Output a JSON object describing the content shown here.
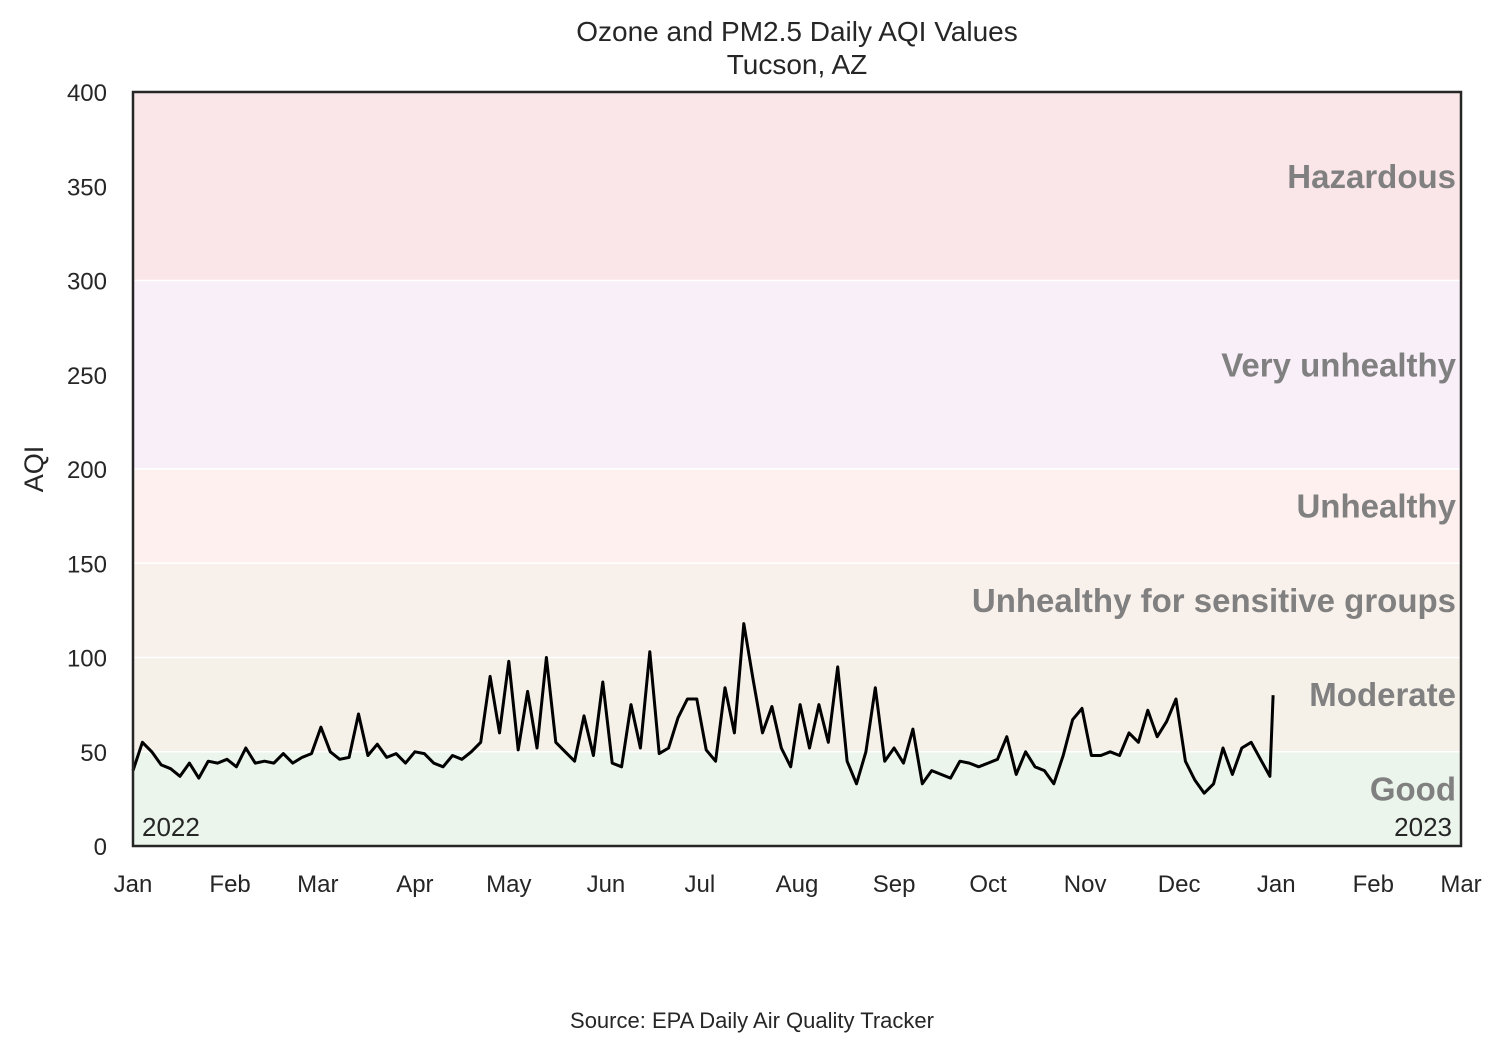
{
  "chart_data": {
    "type": "line",
    "title": "Ozone and PM2.5 Daily AQI Values",
    "subtitle": "Tucson, AZ",
    "xlabel": "",
    "ylabel": "AQI",
    "ylim": [
      0,
      400
    ],
    "yticks": [
      "0",
      "50",
      "100",
      "150",
      "200",
      "250",
      "300",
      "350",
      "400"
    ],
    "xlim_days_from_2022_01_01": [
      0,
      424
    ],
    "xticks": [
      {
        "label": "Jan",
        "day": 0
      },
      {
        "label": "Feb",
        "day": 31
      },
      {
        "label": "Mar",
        "day": 59
      },
      {
        "label": "Apr",
        "day": 90
      },
      {
        "label": "May",
        "day": 120
      },
      {
        "label": "Jun",
        "day": 151
      },
      {
        "label": "Jul",
        "day": 181
      },
      {
        "label": "Aug",
        "day": 212
      },
      {
        "label": "Sep",
        "day": 243
      },
      {
        "label": "Oct",
        "day": 273
      },
      {
        "label": "Nov",
        "day": 304
      },
      {
        "label": "Dec",
        "day": 334
      },
      {
        "label": "Jan",
        "day": 365
      },
      {
        "label": "Feb",
        "day": 396
      },
      {
        "label": "Mar",
        "day": 424
      }
    ],
    "grid": false,
    "year_labels": {
      "start": "2022",
      "end": "2023"
    },
    "bands": [
      {
        "label": "Good",
        "min": 0,
        "max": 50,
        "color": "#ebf5ec"
      },
      {
        "label": "Moderate",
        "min": 50,
        "max": 100,
        "color": "#f5f0e8"
      },
      {
        "label": "Unhealthy for sensitive groups",
        "min": 100,
        "max": 150,
        "color": "#f8f0ea"
      },
      {
        "label": "Unhealthy",
        "min": 150,
        "max": 200,
        "color": "#fdf0ee"
      },
      {
        "label": "Very unhealthy",
        "min": 200,
        "max": 300,
        "color": "#f8eff8"
      },
      {
        "label": "Hazardous",
        "min": 300,
        "max": 400,
        "color": "#fae6e8"
      }
    ],
    "series": [
      {
        "name": "Daily AQI",
        "color": "#000000",
        "x_days": [
          0,
          3,
          6,
          9,
          12,
          15,
          18,
          21,
          24,
          27,
          30,
          33,
          36,
          39,
          42,
          45,
          48,
          51,
          54,
          57,
          60,
          63,
          66,
          69,
          72,
          75,
          78,
          81,
          84,
          87,
          90,
          93,
          96,
          99,
          102,
          105,
          108,
          111,
          114,
          117,
          120,
          123,
          126,
          129,
          132,
          135,
          138,
          141,
          144,
          147,
          150,
          153,
          156,
          159,
          162,
          165,
          168,
          171,
          174,
          177,
          180,
          183,
          186,
          189,
          192,
          195,
          198,
          201,
          204,
          207,
          210,
          213,
          216,
          219,
          222,
          225,
          228,
          231,
          234,
          237,
          240,
          243,
          246,
          249,
          252,
          255,
          258,
          261,
          264,
          267,
          270,
          273,
          276,
          279,
          282,
          285,
          288,
          291,
          294,
          297,
          300,
          303,
          306,
          309,
          312,
          315,
          318,
          321,
          324,
          327,
          330,
          333,
          336,
          339,
          342,
          345,
          348,
          351,
          354,
          357,
          360,
          363,
          364
        ],
        "values": [
          40,
          55,
          50,
          43,
          41,
          37,
          44,
          36,
          45,
          44,
          46,
          42,
          52,
          44,
          45,
          44,
          49,
          44,
          47,
          49,
          63,
          50,
          46,
          47,
          70,
          48,
          54,
          47,
          49,
          44,
          50,
          49,
          44,
          42,
          48,
          46,
          50,
          55,
          90,
          60,
          98,
          51,
          82,
          52,
          100,
          55,
          50,
          45,
          69,
          48,
          87,
          44,
          42,
          75,
          52,
          103,
          49,
          52,
          68,
          78,
          78,
          51,
          45,
          84,
          60,
          118,
          88,
          60,
          74,
          52,
          42,
          75,
          52,
          75,
          55,
          95,
          45,
          33,
          50,
          84,
          45,
          52,
          44,
          62,
          33,
          40,
          38,
          36,
          45,
          44,
          42,
          44,
          46,
          58,
          38,
          50,
          42,
          40,
          33,
          48,
          67,
          73,
          48,
          48,
          50,
          48,
          60,
          55,
          72,
          58,
          66,
          78,
          45,
          35,
          28,
          33,
          52,
          38,
          52,
          55,
          46,
          37,
          80
        ]
      }
    ]
  },
  "source": "Source: EPA Daily Air Quality Tracker"
}
